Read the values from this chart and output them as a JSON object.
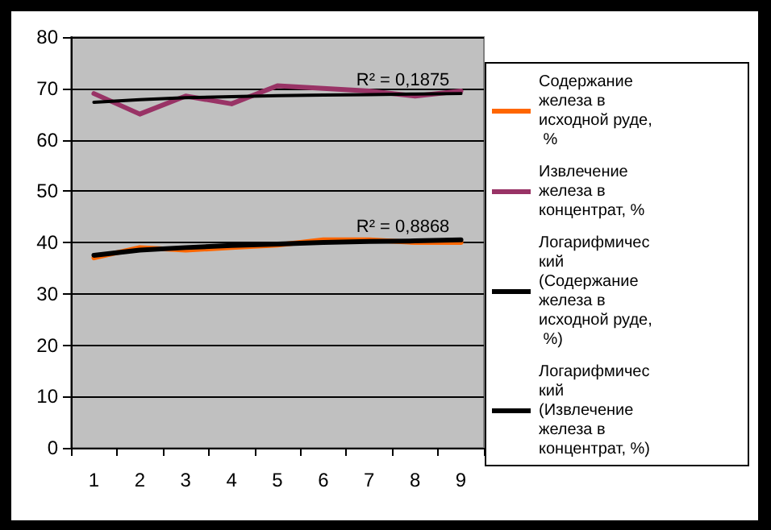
{
  "chart_data": {
    "type": "line",
    "categories": [
      "1",
      "2",
      "3",
      "4",
      "5",
      "6",
      "7",
      "8",
      "9"
    ],
    "series": [
      {
        "name": "Содержание железа в исходной руде, %",
        "color": "#ff6600",
        "values": [
          37,
          39,
          38.5,
          39,
          39.5,
          40.5,
          40.5,
          40,
          40
        ]
      },
      {
        "name": "Извлечение железа в концентрат, %",
        "color": "#993366",
        "values": [
          69,
          65,
          68.5,
          67,
          70.5,
          70,
          69.5,
          68.5,
          69.5
        ]
      },
      {
        "name": "Логарифмический (Содержание железа в исходной руде, %)",
        "color": "#000000",
        "values": [
          37.5,
          38.5,
          39,
          39.4,
          39.7,
          40,
          40.2,
          40.3,
          40.5
        ]
      },
      {
        "name": "Логарифмический (Извлечение железа в концентрат, %)",
        "color": "#000000",
        "values": [
          67.3,
          67.8,
          68.2,
          68.4,
          68.6,
          68.7,
          68.8,
          68.9,
          69
        ]
      }
    ],
    "ylim": [
      0,
      80
    ],
    "yticks": [
      0,
      10,
      20,
      30,
      40,
      50,
      60,
      70,
      80
    ],
    "grid": "y",
    "legend": "right",
    "marker": "none",
    "line_style": "solid",
    "annotations": [
      {
        "text": "R² = 0,1875",
        "x": "7",
        "y": 68.5
      },
      {
        "text": "R² = 0,8868",
        "x": "7",
        "y": 40
      }
    ]
  }
}
